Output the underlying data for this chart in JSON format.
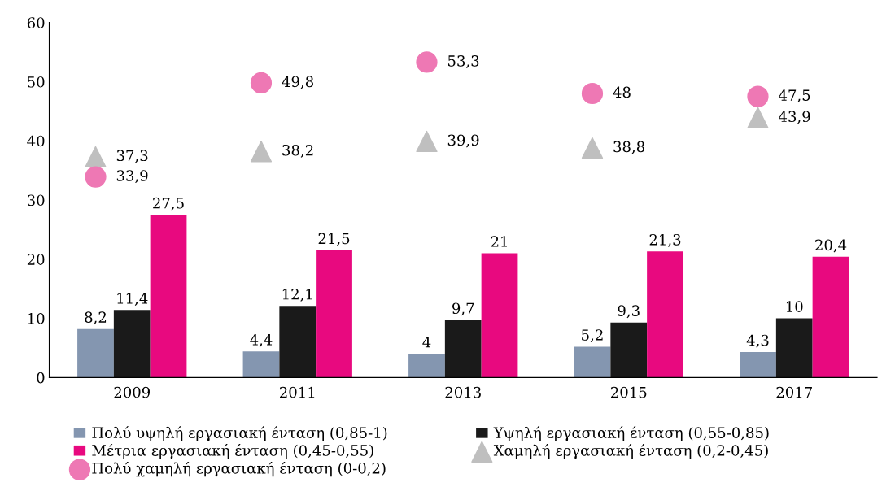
{
  "chart_data": {
    "type": "bar",
    "categories": [
      "2009",
      "2011",
      "2013",
      "2015",
      "2017"
    ],
    "ylim": [
      0,
      60
    ],
    "yticks": [
      0,
      10,
      20,
      30,
      40,
      50,
      60
    ],
    "grid": false,
    "legend": "bottom",
    "data_labels": true,
    "series": [
      {
        "name": "Πολύ υψηλή εργασιακή ένταση (0,85-1)",
        "color": "#8496b0",
        "values": [
          8.2,
          4.4,
          4,
          5.2,
          4.3
        ],
        "value_labels": [
          "8,2",
          "4,4",
          "4",
          "5,2",
          "4,3"
        ]
      },
      {
        "name": "Υψηλή εργασιακή ένταση (0,55-0,85)",
        "color": "#1a1a1a",
        "values": [
          11.4,
          12.1,
          9.7,
          9.3,
          10
        ],
        "value_labels": [
          "11,4",
          "12,1",
          "9,7",
          "9,3",
          "10"
        ]
      },
      {
        "name": "Μέτρια εργασιακή ένταση (0,45-0,55)",
        "color": "#e8097f",
        "values": [
          27.5,
          21.5,
          21,
          21.3,
          20.4
        ],
        "value_labels": [
          "27,5",
          "21,5",
          "21",
          "21,3",
          "20,4"
        ]
      },
      {
        "name": "Χαμηλή εργασιακή ένταση (0,2-0,45)",
        "type": "scatter",
        "marker": "triangle",
        "color": "#bfbfbf",
        "values": [
          37.3,
          38.2,
          39.9,
          38.8,
          43.9
        ],
        "value_labels": [
          "37,3",
          "38,2",
          "39,9",
          "38,8",
          "43,9"
        ]
      },
      {
        "name": "Πολύ χαμηλή εργασιακή ένταση (0-0,2)",
        "type": "scatter",
        "marker": "circle",
        "color": "#ee78b4",
        "values": [
          33.9,
          49.8,
          53.3,
          48,
          47.5
        ],
        "value_labels": [
          "33,9",
          "49,8",
          "53,3",
          "48",
          "47,5"
        ]
      }
    ]
  }
}
